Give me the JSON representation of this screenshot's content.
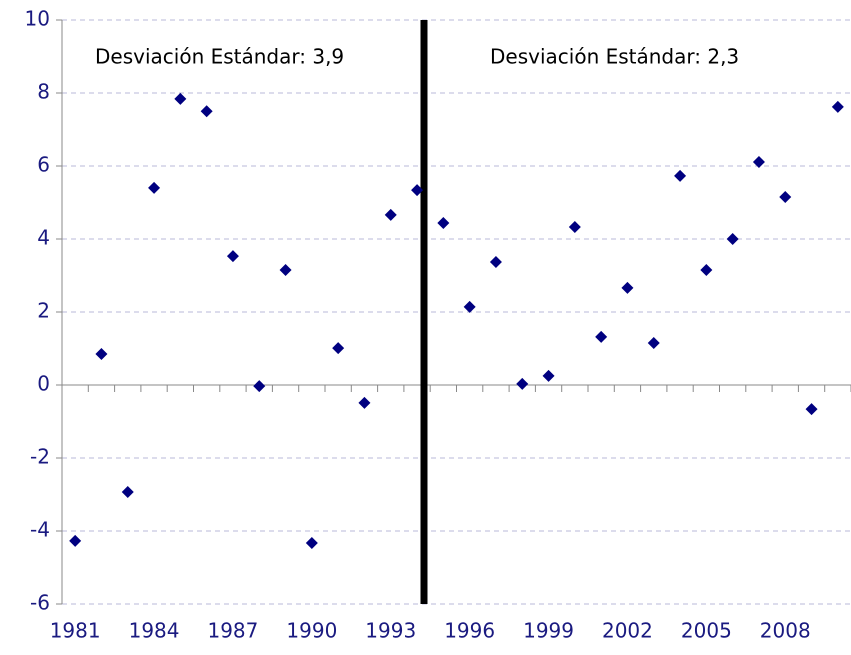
{
  "chart_data": {
    "type": "scatter",
    "categories": [
      "1981",
      null,
      null,
      "1984",
      null,
      null,
      "1987",
      null,
      null,
      "1990",
      null,
      null,
      "1993",
      null,
      null,
      "1996",
      null,
      null,
      "1999",
      null,
      null,
      "2002",
      null,
      null,
      "2005",
      null,
      null,
      "2008",
      null,
      null
    ],
    "values": [
      -4.27,
      0.85,
      -2.93,
      5.4,
      7.84,
      7.5,
      3.53,
      -0.03,
      3.15,
      -4.33,
      1.01,
      -0.49,
      4.66,
      5.34,
      4.44,
      2.14,
      3.37,
      0.03,
      0.25,
      4.33,
      1.32,
      2.66,
      1.15,
      5.73,
      3.15,
      4.0,
      6.11,
      5.15,
      -0.66,
      7.62
    ],
    "color": "#000080",
    "ylim": [
      -6,
      10
    ],
    "yticks": [
      -6,
      -4,
      -2,
      0,
      2,
      4,
      6,
      8,
      10
    ],
    "grid": true,
    "annotations": [
      "Desviación Estándar: 3,9",
      "Desviación Estándar: 2,3"
    ]
  }
}
